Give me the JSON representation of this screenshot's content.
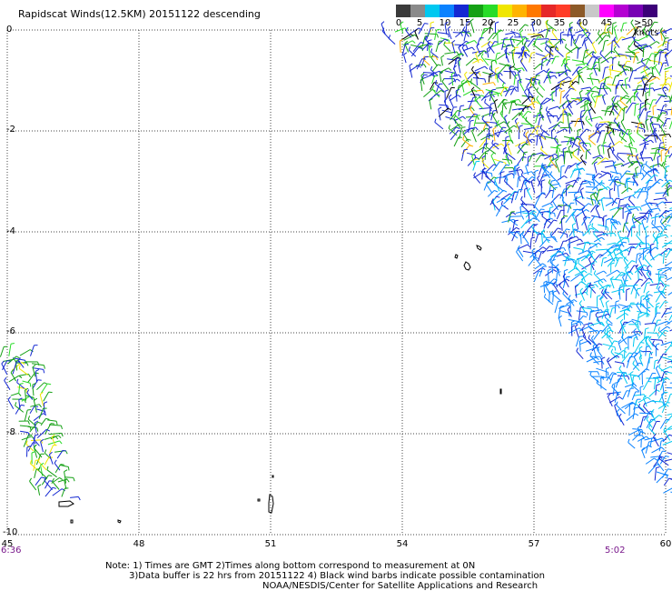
{
  "title": "Rapidscat Winds(12.5KM) 20151122 descending",
  "colorbar": {
    "labels": [
      "0",
      "5",
      "10",
      "15",
      "20",
      "25",
      "30",
      "35",
      "40",
      "45",
      ">50 knots"
    ],
    "colors": [
      "#3a3a3a",
      "#8a8a8a",
      "#00c8f0",
      "#0a82ff",
      "#1428d2",
      "#14a014",
      "#28dc28",
      "#f0e600",
      "#ffb400",
      "#ff7800",
      "#e62828",
      "#ff3c28",
      "#8c5a28",
      "#c8c8c8",
      "#ff00ff",
      "#b400d2",
      "#7800b4",
      "#3c0078"
    ]
  },
  "axes": {
    "y_ticks": [
      "0",
      "-2",
      "-4",
      "-6",
      "-8",
      "-10"
    ],
    "x_ticks": [
      "45",
      "48",
      "51",
      "54",
      "57",
      "60"
    ]
  },
  "times": {
    "left": "6:36",
    "right": "5:02"
  },
  "notes": {
    "line1": "Note: 1) Times are GMT 2)Times along bottom correspond to measurement at 0N",
    "line2": "3)Data buffer is 22 hrs from 20151122 4) Black wind barbs indicate possible contamination",
    "line3": "NOAA/NESDIS/Center for Satellite Applications and Research"
  }
}
